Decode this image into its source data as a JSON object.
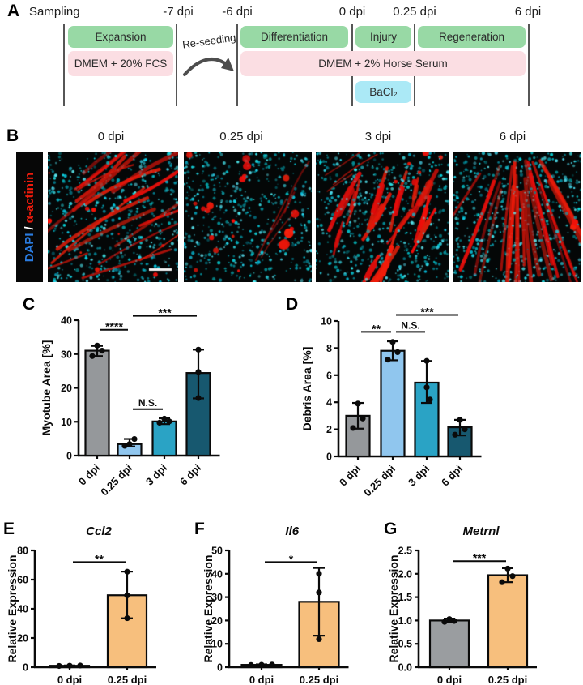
{
  "panelA": {
    "label": "A",
    "sampling": "Sampling",
    "timepoints": [
      "-7 dpi",
      "-6 dpi",
      "0 dpi",
      "0.25 dpi",
      "6 dpi"
    ],
    "reseeding": "Re-seeding",
    "boxes": {
      "expansion": "Expansion",
      "dmem_fcs": "DMEM + 20% FCS",
      "differentiation": "Differentiation",
      "injury": "Injury",
      "regeneration": "Regeneration",
      "dmem_hs": "DMEM + 2% Horse Serum",
      "bacl2": "BaCl₂"
    }
  },
  "panelB": {
    "label": "B",
    "stain_dapi": "DAPI",
    "stain_separator": "/",
    "stain_actinin": "α-actinin",
    "image_titles": [
      "0 dpi",
      "0.25 dpi",
      "3 dpi",
      "6 dpi"
    ]
  },
  "panelC": {
    "label": "C"
  },
  "panelD": {
    "label": "D"
  },
  "panelE": {
    "label": "E"
  },
  "panelF": {
    "label": "F"
  },
  "panelG": {
    "label": "G"
  },
  "colors": {
    "phase_green": "#98d9a5",
    "media_pink": "#fbdee3",
    "bacl2_cyan": "#abe9f6",
    "timeline_line": "#565656",
    "gray_bar": "#95989b",
    "lightblue_bar": "#90c6ee",
    "teal_bar": "#2aa3c5",
    "darkteal_bar": "#17586f",
    "orange_bar": "#f7bf7d",
    "dapi_blue": "#2a7ce1",
    "actinin_red": "#ee1b0c"
  },
  "chart_data": [
    {
      "id": "C",
      "type": "bar",
      "title": "",
      "ylabel": "Myotube Area [%]",
      "categories": [
        "0 dpi",
        "0.25 dpi",
        "3 dpi",
        "6 dpi"
      ],
      "values": [
        31.0,
        3.4,
        10.1,
        24.4
      ],
      "bar_colors": [
        "#95989b",
        "#90c6ee",
        "#2aa3c5",
        "#17586f"
      ],
      "error_low": [
        29.4,
        2.7,
        9.3,
        16.9
      ],
      "error_high": [
        32.4,
        4.9,
        11.0,
        31.3
      ],
      "points": [
        [
          29.4,
          31.0,
          32.5
        ],
        [
          2.9,
          3.4,
          4.9
        ],
        [
          9.7,
          10.1,
          10.9
        ],
        [
          17.0,
          24.7,
          31.3
        ]
      ],
      "ylim": [
        0,
        40
      ],
      "yticks": [
        0,
        10,
        20,
        30,
        40
      ],
      "ytick_labels": [
        "0",
        "10",
        "20",
        "30",
        "40"
      ],
      "grid": false,
      "significance": [
        {
          "between": [
            0,
            1
          ],
          "label": "****",
          "y": 37.2
        },
        {
          "between": [
            1,
            2
          ],
          "label": "N.S.",
          "y": 13.7
        },
        {
          "between": [
            1,
            3
          ],
          "label": "***",
          "y": 41.3
        }
      ]
    },
    {
      "id": "D",
      "type": "bar",
      "title": "",
      "ylabel": "Debris Area [%]",
      "categories": [
        "0 dpi",
        "0.25 dpi",
        "3 dpi",
        "6 dpi"
      ],
      "values": [
        3.0,
        7.8,
        5.45,
        2.15
      ],
      "bar_colors": [
        "#95989b",
        "#90c6ee",
        "#2aa3c5",
        "#17586f"
      ],
      "error_low": [
        2.05,
        7.1,
        3.95,
        1.55
      ],
      "error_high": [
        3.95,
        8.5,
        7.05,
        2.7
      ],
      "points": [
        [
          2.1,
          2.8,
          3.9
        ],
        [
          7.15,
          7.7,
          8.45
        ],
        [
          4.2,
          5.1,
          7.05
        ],
        [
          1.6,
          2.0,
          2.7
        ]
      ],
      "ylim": [
        0,
        10
      ],
      "yticks": [
        0,
        2,
        4,
        6,
        8,
        10
      ],
      "ytick_labels": [
        "0",
        "2",
        "4",
        "6",
        "8",
        "10"
      ],
      "grid": false,
      "significance": [
        {
          "between": [
            0,
            1
          ],
          "label": "**",
          "y": 9.2
        },
        {
          "between": [
            1,
            2
          ],
          "label": "N.S.",
          "y": 9.2
        },
        {
          "between": [
            1,
            3
          ],
          "label": "***",
          "y": 10.45
        }
      ]
    },
    {
      "id": "E",
      "type": "bar",
      "title": "Ccl2",
      "ylabel": "Relative Expression",
      "categories": [
        "0 dpi",
        "0.25 dpi"
      ],
      "values": [
        1.0,
        49.3
      ],
      "bar_colors": [
        "#95989b",
        "#f7bf7d"
      ],
      "error_low": [
        0.8,
        33.5
      ],
      "error_high": [
        1.2,
        65.5
      ],
      "points": [
        [
          0.85,
          1.0,
          1.15
        ],
        [
          33.6,
          49.2,
          65.4
        ]
      ],
      "ylim": [
        0,
        80
      ],
      "yticks": [
        0,
        20,
        40,
        60,
        80
      ],
      "ytick_labels": [
        "0",
        "20",
        "40",
        "60",
        "80"
      ],
      "grid": false,
      "significance": [
        {
          "between": [
            0,
            1
          ],
          "label": "**",
          "y": 72
        }
      ]
    },
    {
      "id": "F",
      "type": "bar",
      "title": "Il6",
      "ylabel": "Relative Expression",
      "categories": [
        "0 dpi",
        "0.25 dpi"
      ],
      "values": [
        1.0,
        28.0
      ],
      "bar_colors": [
        "#95989b",
        "#f7bf7d"
      ],
      "error_low": [
        0.8,
        13.5
      ],
      "error_high": [
        1.2,
        42.5
      ],
      "points": [
        [
          0.9,
          1.0,
          1.1
        ],
        [
          12.0,
          32.0,
          40.0
        ]
      ],
      "ylim": [
        0,
        50
      ],
      "yticks": [
        0,
        10,
        20,
        30,
        40,
        50
      ],
      "ytick_labels": [
        "0",
        "10",
        "20",
        "30",
        "40",
        "50"
      ],
      "grid": false,
      "significance": [
        {
          "between": [
            0,
            1
          ],
          "label": "*",
          "y": 45
        }
      ]
    },
    {
      "id": "G",
      "type": "bar",
      "title": "Metrnl",
      "ylabel": "Relative Expression",
      "categories": [
        "0 dpi",
        "0.25 dpi"
      ],
      "values": [
        1.0,
        1.97
      ],
      "bar_colors": [
        "#9a9da0",
        "#f7bf7d"
      ],
      "error_low": [
        0.965,
        1.82
      ],
      "error_high": [
        1.04,
        2.12
      ],
      "points": [
        [
          0.97,
          0.99,
          1.03
        ],
        [
          1.82,
          1.95,
          2.11
        ]
      ],
      "ylim": [
        0,
        2.5
      ],
      "yticks": [
        0,
        0.5,
        1.0,
        1.5,
        2.0,
        2.5
      ],
      "ytick_labels": [
        "0.0",
        "0.5",
        "1.0",
        "1.5",
        "2.0",
        "2.5"
      ],
      "grid": false,
      "significance": [
        {
          "between": [
            0,
            1
          ],
          "label": "***",
          "y": 2.27
        }
      ]
    }
  ]
}
